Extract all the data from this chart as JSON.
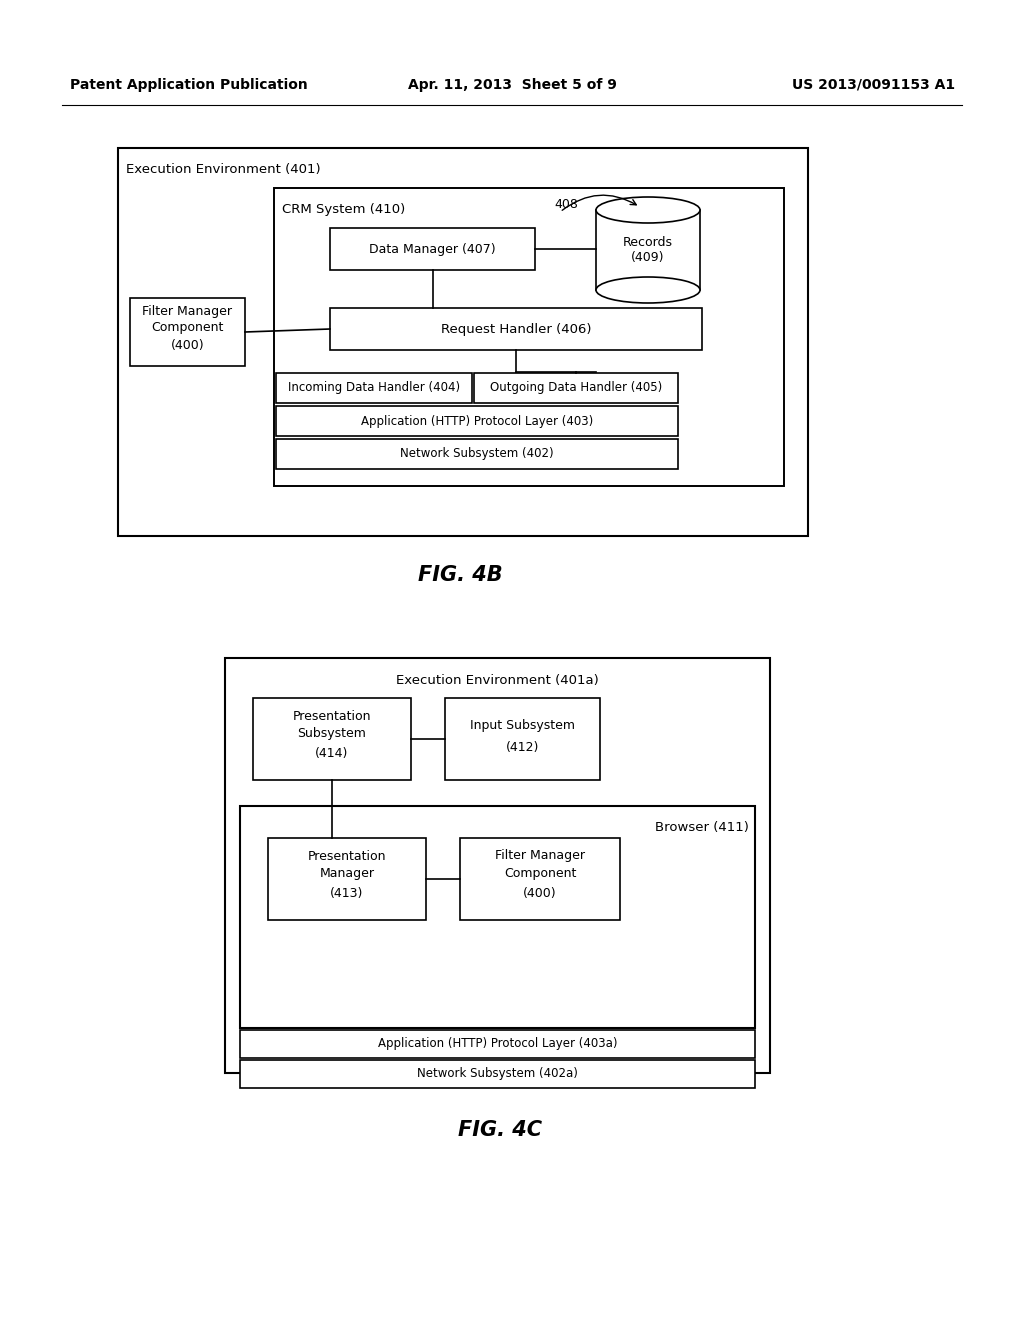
{
  "header_left": "Patent Application Publication",
  "header_center": "Apr. 11, 2013  Sheet 5 of 9",
  "header_right": "US 2013/0091153 A1",
  "fig4b_title": "FIG. 4B",
  "fig4c_title": "FIG. 4C",
  "bg_color": "#ffffff",
  "ec": "#000000",
  "fig4b": {
    "ee_label": "Execution Environment (401)",
    "crm_label": "CRM System (410)",
    "dm_label": "Data Manager (407)",
    "rec_label": "Records\n(409)",
    "rec_num": "408",
    "rh_label": "Request Handler (406)",
    "fm_label_1": "Filter Manager",
    "fm_label_2": "Component",
    "fm_label_3": "(400)",
    "idh_label": "Incoming Data Handler (404)",
    "odh_label": "Outgoing Data Handler (405)",
    "apl_label": "Application (HTTP) Protocol Layer (403)",
    "ns_label": "Network Subsystem (402)"
  },
  "fig4c": {
    "ee_label": "Execution Environment (401a)",
    "ps_label_1": "Presentation",
    "ps_label_2": "Subsystem",
    "ps_label_3": "(414)",
    "is_label_1": "Input Subsystem",
    "is_label_2": "(412)",
    "br_label": "Browser (411)",
    "pm_label_1": "Presentation",
    "pm_label_2": "Manager",
    "pm_label_3": "(413)",
    "fmc_label_1": "Filter Manager",
    "fmc_label_2": "Component",
    "fmc_label_3": "(400)",
    "apl_label": "Application (HTTP) Protocol Layer (403a)",
    "ns_label": "Network Subsystem (402a)"
  }
}
